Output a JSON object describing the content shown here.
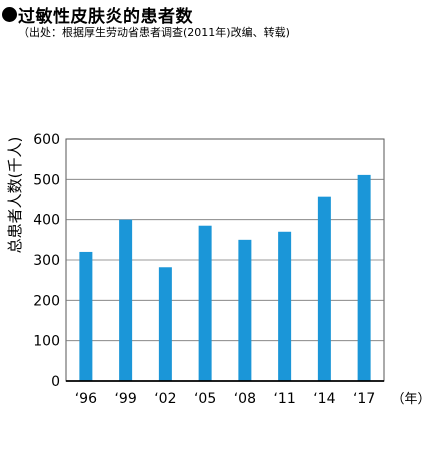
{
  "header": {
    "title": "过敏性皮肤炎的患者数",
    "subtitle": "（出处：根据厚生劳动省患者调查(2011年)改编、转载)"
  },
  "chart_data": {
    "type": "bar",
    "categories": [
      "‘96",
      "‘99",
      "‘02",
      "‘05",
      "‘08",
      "‘11",
      "‘14",
      "‘17"
    ],
    "values": [
      320,
      400,
      282,
      385,
      350,
      370,
      457,
      511
    ],
    "ylabel": "总患者人数(千人)",
    "xunit": "（年）",
    "ylim": [
      0,
      600
    ],
    "yticks": [
      "0",
      "100",
      "200",
      "300",
      "400",
      "500",
      "600"
    ],
    "grid": true,
    "bar_color": "#1b96d8"
  }
}
